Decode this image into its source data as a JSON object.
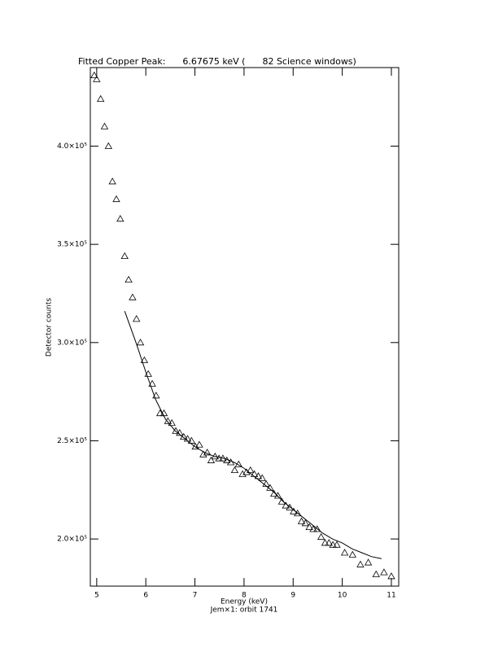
{
  "chart_data": {
    "type": "scatter",
    "title": "Fitted Copper Peak:      6.67675 keV (      82 Science windows)",
    "x_label": "Energy (keV)",
    "subtitle": "Jem×1: orbit 1741",
    "y_label": "Detector counts",
    "xlim": [
      4.87,
      11.15
    ],
    "ylim": [
      176000,
      440000
    ],
    "xticks": [
      5,
      6,
      7,
      8,
      9,
      10,
      11
    ],
    "yticks": [
      {
        "value": 200000,
        "label": "2.0×10⁵"
      },
      {
        "value": 250000,
        "label": "2.5×10⁵"
      },
      {
        "value": 300000,
        "label": "3.0×10⁵"
      },
      {
        "value": 350000,
        "label": "3.5×10⁵"
      },
      {
        "value": 400000,
        "label": "4.0×10⁵"
      }
    ],
    "color": "#000000",
    "series": [
      {
        "mark": "triangle",
        "x": [
          4.95,
          5.0,
          5.08,
          5.16,
          5.24,
          5.32,
          5.4,
          5.48,
          5.57,
          5.65,
          5.73,
          5.81,
          5.89,
          5.97,
          6.05,
          6.13,
          6.21,
          6.29,
          6.37,
          6.45,
          6.53,
          6.61,
          6.69,
          6.77,
          6.85,
          6.93,
          7.01,
          7.09,
          7.17,
          7.25,
          7.33,
          7.41,
          7.49,
          7.57,
          7.65,
          7.73,
          7.81,
          7.89,
          7.97,
          8.05,
          8.13,
          8.21,
          8.29,
          8.37,
          8.45,
          8.53,
          8.61,
          8.69,
          8.77,
          8.85,
          8.93,
          9.01,
          9.09,
          9.17,
          9.25,
          9.33,
          9.41,
          9.49,
          9.57,
          9.65,
          9.73,
          9.81,
          9.89,
          10.05,
          10.21,
          10.37,
          10.53,
          10.69,
          10.85,
          11.0
        ],
        "values": [
          436000,
          434000,
          424000,
          410000,
          400000,
          382000,
          373000,
          363000,
          344000,
          332000,
          323000,
          312000,
          300000,
          291000,
          284000,
          279000,
          273000,
          264000,
          264000,
          260000,
          259000,
          255000,
          254000,
          252000,
          251000,
          250000,
          247000,
          248000,
          243000,
          244000,
          240000,
          242000,
          241000,
          241000,
          240000,
          239000,
          235000,
          238000,
          233000,
          234000,
          235000,
          233000,
          232000,
          231000,
          228000,
          226000,
          223000,
          222000,
          219000,
          217000,
          216000,
          214000,
          213000,
          209000,
          208000,
          206000,
          205000,
          205000,
          201000,
          198000,
          198000,
          197000,
          197000,
          193000,
          192000,
          187000,
          188000,
          182000,
          183000,
          181000
        ]
      },
      {
        "mark": "line",
        "x": [
          5.57,
          5.8,
          6.0,
          6.2,
          6.4,
          6.6,
          6.8,
          7.0,
          7.2,
          7.4,
          7.6,
          7.8,
          8.0,
          8.2,
          8.4,
          8.6,
          8.8,
          9.0,
          9.2,
          9.4,
          9.6,
          9.8,
          10.0,
          10.2,
          10.4,
          10.6,
          10.8
        ],
        "values": [
          316000,
          300000,
          285000,
          271000,
          261000,
          255000,
          251000,
          247000,
          244000,
          242000,
          241000,
          239000,
          236000,
          232000,
          228000,
          224000,
          219000,
          215000,
          211000,
          207000,
          203000,
          200000,
          198000,
          195000,
          193000,
          191000,
          190000
        ]
      }
    ]
  }
}
